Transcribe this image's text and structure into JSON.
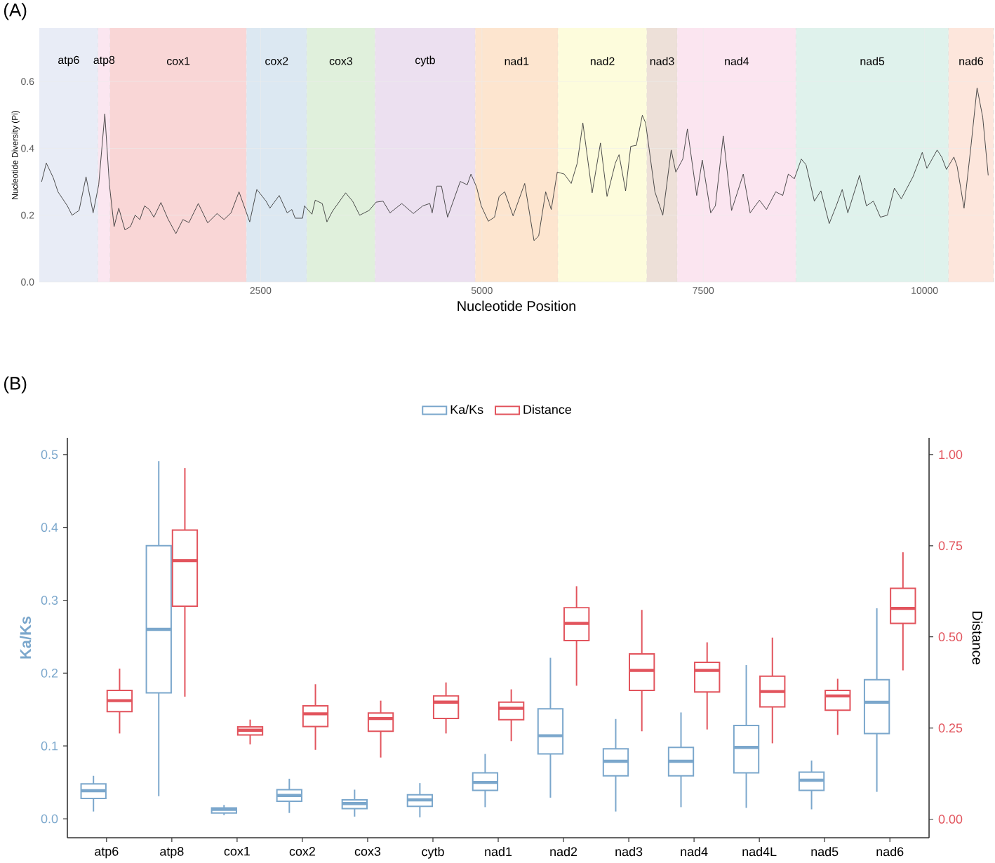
{
  "chart_data": [
    {
      "type": "line",
      "title": "(A)",
      "xlabel": "Nucleotide Position",
      "ylabel": "Nucleotide Diversity (Pi)",
      "x": [
        26,
        79,
        158,
        211,
        264,
        317,
        370,
        449,
        528,
        608,
        671,
        740,
        792,
        845,
        898,
        967,
        1030,
        1083,
        1136,
        1189,
        1242,
        1294,
        1374,
        1453,
        1543,
        1622,
        1691,
        1796,
        1902,
        2008,
        2087,
        2166,
        2256,
        2377,
        2457,
        2562,
        2605,
        2710,
        2800,
        2853,
        2890,
        2974,
        2995,
        3080,
        3117,
        3196,
        3249,
        3312,
        3460,
        3539,
        3619,
        3724,
        3804,
        3883,
        3962,
        4094,
        4226,
        4332,
        4411,
        4438,
        4491,
        4543,
        4612,
        4755,
        4834,
        4876,
        4940,
        4992,
        5072,
        5142,
        5194,
        5257,
        5352,
        5483,
        5588,
        5641,
        5720,
        5783,
        5851,
        5930,
        6008,
        6077,
        6140,
        6245,
        6339,
        6413,
        6507,
        6549,
        6623,
        6681,
        6744,
        6812,
        6849,
        6954,
        7043,
        7138,
        7190,
        7269,
        7321,
        7426,
        7489,
        7584,
        7637,
        7726,
        7820,
        7952,
        8030,
        8135,
        8214,
        8319,
        8398,
        8461,
        8529,
        8608,
        8661,
        8755,
        8829,
        8923,
        9002,
        9070,
        9133,
        9265,
        9343,
        9422,
        9501,
        9580,
        9659,
        9737,
        9869,
        9974,
        10026,
        10142,
        10194,
        10247,
        10331,
        10368,
        10446,
        10525,
        10593,
        10657,
        10719
      ],
      "series": [
        {
          "color": "#3a3a3a",
          "values": [
            0.3,
            0.356,
            0.312,
            0.27,
            0.249,
            0.228,
            0.2,
            0.214,
            0.315,
            0.207,
            0.291,
            0.503,
            0.291,
            0.166,
            0.221,
            0.156,
            0.166,
            0.2,
            0.187,
            0.228,
            0.217,
            0.194,
            0.238,
            0.189,
            0.145,
            0.187,
            0.178,
            0.235,
            0.177,
            0.205,
            0.187,
            0.207,
            0.27,
            0.18,
            0.277,
            0.242,
            0.221,
            0.259,
            0.207,
            0.217,
            0.191,
            0.191,
            0.228,
            0.203,
            0.245,
            0.235,
            0.18,
            0.212,
            0.267,
            0.242,
            0.2,
            0.214,
            0.239,
            0.242,
            0.207,
            0.235,
            0.205,
            0.228,
            0.235,
            0.207,
            0.287,
            0.287,
            0.194,
            0.301,
            0.291,
            0.323,
            0.284,
            0.228,
            0.182,
            0.194,
            0.256,
            0.27,
            0.198,
            0.295,
            0.124,
            0.138,
            0.27,
            0.217,
            0.329,
            0.323,
            0.295,
            0.356,
            0.476,
            0.267,
            0.416,
            0.256,
            0.356,
            0.381,
            0.273,
            0.406,
            0.409,
            0.499,
            0.476,
            0.27,
            0.2,
            0.395,
            0.329,
            0.368,
            0.458,
            0.259,
            0.365,
            0.207,
            0.228,
            0.437,
            0.214,
            0.323,
            0.207,
            0.245,
            0.217,
            0.27,
            0.259,
            0.323,
            0.309,
            0.368,
            0.351,
            0.242,
            0.273,
            0.175,
            0.228,
            0.277,
            0.207,
            0.319,
            0.228,
            0.242,
            0.194,
            0.2,
            0.281,
            0.249,
            0.315,
            0.388,
            0.34,
            0.395,
            0.374,
            0.337,
            0.374,
            0.346,
            0.221,
            0.409,
            0.581,
            0.493,
            0.319
          ]
        }
      ],
      "xlim": [
        0,
        10780
      ],
      "ylim": [
        0,
        0.76
      ],
      "xticks": [
        2500,
        5000,
        7500,
        10000
      ],
      "yticks": [
        {
          "value": 0,
          "label": "0.0"
        },
        {
          "value": 0.2,
          "label": "0.2"
        },
        {
          "value": 0.4,
          "label": "0.4"
        },
        {
          "value": 0.6,
          "label": "0.6"
        }
      ],
      "grid": true,
      "bands": [
        {
          "axis": "x",
          "from": 0,
          "to": 664,
          "label": "atp6",
          "color": "#e8ecf6"
        },
        {
          "axis": "x",
          "from": 664,
          "to": 800,
          "label": "atp8",
          "color": "#fbe6f0"
        },
        {
          "axis": "x",
          "from": 800,
          "to": 2341,
          "label": "cox1",
          "color": "#f9d6d6"
        },
        {
          "axis": "x",
          "from": 2341,
          "to": 3022,
          "label": "cox2",
          "color": "#dce8f2"
        },
        {
          "axis": "x",
          "from": 3022,
          "to": 3793,
          "label": "cox3",
          "color": "#e0f0dc"
        },
        {
          "axis": "x",
          "from": 3793,
          "to": 4925,
          "label": "cytb",
          "color": "#ece0f0"
        },
        {
          "axis": "x",
          "from": 4925,
          "to": 5860,
          "label": "nad1",
          "color": "#fde5cf"
        },
        {
          "axis": "x",
          "from": 5860,
          "to": 6863,
          "label": "nad2",
          "color": "#fdfcdc"
        },
        {
          "axis": "x",
          "from": 6863,
          "to": 7207,
          "label": "nad3",
          "color": "#ede0d8"
        },
        {
          "axis": "x",
          "from": 7207,
          "to": 8548,
          "label": "nad4",
          "color": "#fbe5f0"
        },
        {
          "axis": "x",
          "from": 8548,
          "to": 10271,
          "label": "nad5",
          "color": "#dff2ec"
        },
        {
          "axis": "x",
          "from": 10271,
          "to": 10780,
          "label": "nad6",
          "color": "#fde6dc"
        }
      ]
    },
    {
      "type": "box",
      "title": "(B)",
      "ylabel": "Ka/Ks",
      "y2label": "Distance",
      "categories": [
        "atp6",
        "atp8",
        "cox1",
        "cox2",
        "cox3",
        "cytb",
        "nad1",
        "nad2",
        "nad3",
        "nad4",
        "nad4L",
        "nad5",
        "nad6"
      ],
      "series": [
        {
          "name": "Ka/Ks",
          "color": "#7ba7cc",
          "boxes": [
            {
              "low": 0.01,
              "q1": 0.028,
              "median": 0.0385,
              "q3": 0.048,
              "high": 0.059
            },
            {
              "low": 0.031,
              "q1": 0.173,
              "median": 0.26,
              "q3": 0.375,
              "high": 0.491
            },
            {
              "low": 0.005,
              "q1": 0.008,
              "median": 0.013,
              "q3": 0.015,
              "high": 0.019
            },
            {
              "low": 0.008,
              "q1": 0.024,
              "median": 0.032,
              "q3": 0.04,
              "high": 0.055
            },
            {
              "low": 0.003,
              "q1": 0.014,
              "median": 0.021,
              "q3": 0.026,
              "high": 0.04
            },
            {
              "low": 0.002,
              "q1": 0.017,
              "median": 0.026,
              "q3": 0.033,
              "high": 0.049
            },
            {
              "low": 0.016,
              "q1": 0.039,
              "median": 0.05,
              "q3": 0.063,
              "high": 0.089
            },
            {
              "low": 0.029,
              "q1": 0.089,
              "median": 0.114,
              "q3": 0.151,
              "high": 0.221
            },
            {
              "low": 0.01,
              "q1": 0.059,
              "median": 0.079,
              "q3": 0.096,
              "high": 0.137
            },
            {
              "low": 0.016,
              "q1": 0.059,
              "median": 0.079,
              "q3": 0.098,
              "high": 0.146
            },
            {
              "low": 0.015,
              "q1": 0.063,
              "median": 0.098,
              "q3": 0.128,
              "high": 0.211
            },
            {
              "low": 0.013,
              "q1": 0.039,
              "median": 0.053,
              "q3": 0.064,
              "high": 0.08
            },
            {
              "low": 0.037,
              "q1": 0.117,
              "median": 0.16,
              "q3": 0.191,
              "high": 0.289
            }
          ]
        },
        {
          "name": "Distance",
          "color": "#e2545d",
          "axis": "y2",
          "boxes": [
            {
              "low": 0.235,
              "q1": 0.295,
              "median": 0.325,
              "q3": 0.353,
              "high": 0.413
            },
            {
              "low": 0.336,
              "q1": 0.584,
              "median": 0.709,
              "q3": 0.793,
              "high": 0.963
            },
            {
              "low": 0.205,
              "q1": 0.231,
              "median": 0.244,
              "q3": 0.253,
              "high": 0.273
            },
            {
              "low": 0.19,
              "q1": 0.254,
              "median": 0.289,
              "q3": 0.311,
              "high": 0.37
            },
            {
              "low": 0.169,
              "q1": 0.241,
              "median": 0.276,
              "q3": 0.291,
              "high": 0.325
            },
            {
              "low": 0.235,
              "q1": 0.276,
              "median": 0.321,
              "q3": 0.338,
              "high": 0.375
            },
            {
              "low": 0.214,
              "q1": 0.273,
              "median": 0.304,
              "q3": 0.321,
              "high": 0.356
            },
            {
              "low": 0.366,
              "q1": 0.49,
              "median": 0.537,
              "q3": 0.58,
              "high": 0.639
            },
            {
              "low": 0.241,
              "q1": 0.353,
              "median": 0.408,
              "q3": 0.453,
              "high": 0.574
            },
            {
              "low": 0.246,
              "q1": 0.349,
              "median": 0.408,
              "q3": 0.43,
              "high": 0.485
            },
            {
              "low": 0.208,
              "q1": 0.308,
              "median": 0.35,
              "q3": 0.392,
              "high": 0.498
            },
            {
              "low": 0.231,
              "q1": 0.299,
              "median": 0.338,
              "q3": 0.353,
              "high": 0.385
            },
            {
              "low": 0.408,
              "q1": 0.537,
              "median": 0.578,
              "q3": 0.633,
              "high": 0.732
            }
          ]
        }
      ],
      "ylim": [
        -0.026,
        0.523
      ],
      "yticks": [
        {
          "value": 0,
          "label": "0.0"
        },
        0.1,
        0.2,
        0.3,
        0.4,
        0.5
      ],
      "y2lim": [
        -0.051,
        1.046
      ],
      "y2ticks": [
        {
          "value": 0,
          "label": "0.00"
        },
        0.25,
        {
          "value": 0.5,
          "label": "0.50"
        },
        0.75,
        {
          "value": 1,
          "label": "1.00"
        }
      ],
      "legend": "top"
    }
  ]
}
